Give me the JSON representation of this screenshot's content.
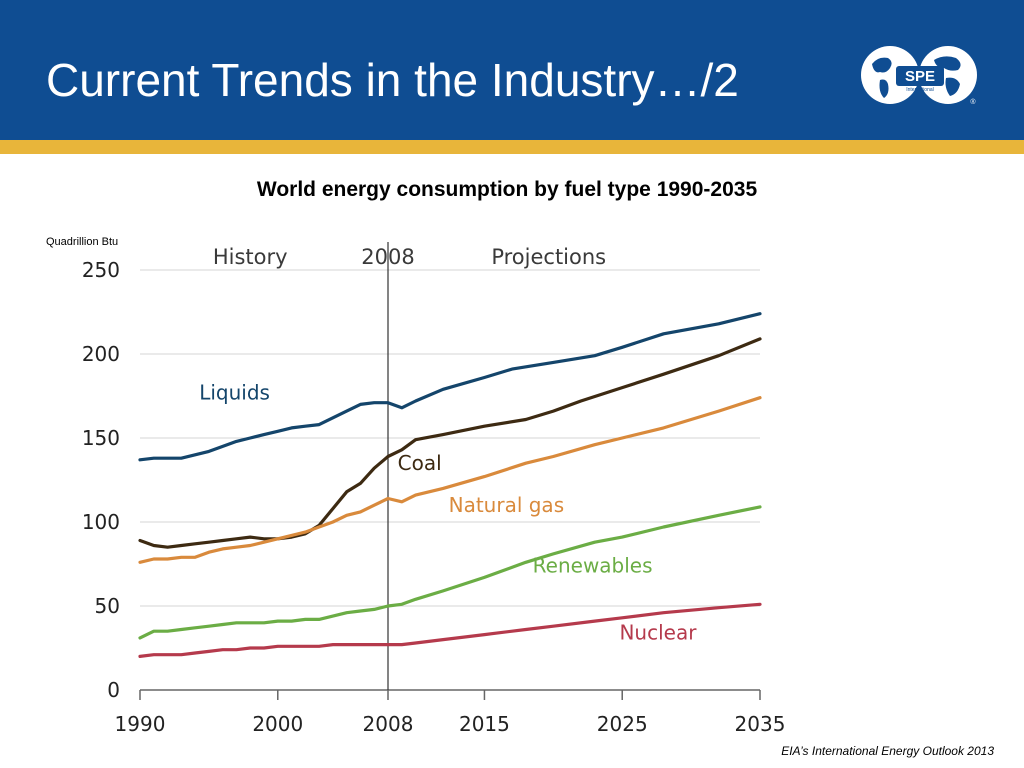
{
  "slide": {
    "title": "Current Trends in the Industry…/2",
    "source": "EIA’s International Energy Outlook 2013",
    "logo_text": "SPE",
    "logo_subtext": "International",
    "logo_mark": "®"
  },
  "colors": {
    "header": "#0f4d92",
    "gold": "#e8b53a",
    "liquids": "#14456b",
    "coal": "#3d2a12",
    "natural_gas": "#d98a3c",
    "renewables": "#6bad45",
    "nuclear": "#b53a4c"
  },
  "chart_data": {
    "type": "line",
    "title": "World energy consumption by fuel type 1990-2035",
    "ylabel": "Quadrillion Btu",
    "xlim": [
      1990,
      2035
    ],
    "ylim": [
      0,
      250
    ],
    "yticks": [
      0,
      50,
      100,
      150,
      200,
      250
    ],
    "xticks": [
      1990,
      2000,
      2008,
      2015,
      2025,
      2035
    ],
    "annotations": {
      "history": "History",
      "divider": "2008",
      "projections": "Projections"
    },
    "divider_year": 2008,
    "grid": true,
    "series": [
      {
        "name": "Liquids",
        "color": "#14456b",
        "points": [
          [
            1990,
            137
          ],
          [
            1991,
            138
          ],
          [
            1992,
            138
          ],
          [
            1993,
            138
          ],
          [
            1994,
            140
          ],
          [
            1995,
            142
          ],
          [
            1996,
            145
          ],
          [
            1997,
            148
          ],
          [
            1998,
            150
          ],
          [
            1999,
            152
          ],
          [
            2000,
            154
          ],
          [
            2001,
            156
          ],
          [
            2002,
            157
          ],
          [
            2003,
            158
          ],
          [
            2004,
            162
          ],
          [
            2005,
            166
          ],
          [
            2006,
            170
          ],
          [
            2007,
            171
          ],
          [
            2008,
            171
          ],
          [
            2009,
            168
          ],
          [
            2010,
            172
          ],
          [
            2012,
            179
          ],
          [
            2015,
            186
          ],
          [
            2017,
            191
          ],
          [
            2020,
            195
          ],
          [
            2023,
            199
          ],
          [
            2025,
            204
          ],
          [
            2028,
            212
          ],
          [
            2032,
            218
          ],
          [
            2035,
            224
          ]
        ]
      },
      {
        "name": "Coal",
        "color": "#3d2a12",
        "points": [
          [
            1990,
            89
          ],
          [
            1991,
            86
          ],
          [
            1992,
            85
          ],
          [
            1993,
            86
          ],
          [
            1994,
            87
          ],
          [
            1995,
            88
          ],
          [
            1996,
            89
          ],
          [
            1997,
            90
          ],
          [
            1998,
            91
          ],
          [
            1999,
            90
          ],
          [
            2000,
            90
          ],
          [
            2001,
            91
          ],
          [
            2002,
            93
          ],
          [
            2003,
            98
          ],
          [
            2004,
            108
          ],
          [
            2005,
            118
          ],
          [
            2006,
            123
          ],
          [
            2007,
            132
          ],
          [
            2008,
            139
          ],
          [
            2009,
            143
          ],
          [
            2010,
            149
          ],
          [
            2012,
            152
          ],
          [
            2015,
            157
          ],
          [
            2018,
            161
          ],
          [
            2020,
            166
          ],
          [
            2022,
            172
          ],
          [
            2025,
            180
          ],
          [
            2028,
            188
          ],
          [
            2032,
            199
          ],
          [
            2035,
            209
          ]
        ]
      },
      {
        "name": "Natural gas",
        "color": "#d98a3c",
        "points": [
          [
            1990,
            76
          ],
          [
            1991,
            78
          ],
          [
            1992,
            78
          ],
          [
            1993,
            79
          ],
          [
            1994,
            79
          ],
          [
            1995,
            82
          ],
          [
            1996,
            84
          ],
          [
            1997,
            85
          ],
          [
            1998,
            86
          ],
          [
            1999,
            88
          ],
          [
            2000,
            90
          ],
          [
            2001,
            92
          ],
          [
            2002,
            94
          ],
          [
            2003,
            97
          ],
          [
            2004,
            100
          ],
          [
            2005,
            104
          ],
          [
            2006,
            106
          ],
          [
            2007,
            110
          ],
          [
            2008,
            114
          ],
          [
            2009,
            112
          ],
          [
            2010,
            116
          ],
          [
            2012,
            120
          ],
          [
            2015,
            127
          ],
          [
            2018,
            135
          ],
          [
            2020,
            139
          ],
          [
            2023,
            146
          ],
          [
            2025,
            150
          ],
          [
            2028,
            156
          ],
          [
            2032,
            166
          ],
          [
            2035,
            174
          ]
        ]
      },
      {
        "name": "Renewables",
        "color": "#6bad45",
        "points": [
          [
            1990,
            31
          ],
          [
            1991,
            35
          ],
          [
            1992,
            35
          ],
          [
            1993,
            36
          ],
          [
            1994,
            37
          ],
          [
            1995,
            38
          ],
          [
            1996,
            39
          ],
          [
            1997,
            40
          ],
          [
            1998,
            40
          ],
          [
            1999,
            40
          ],
          [
            2000,
            41
          ],
          [
            2001,
            41
          ],
          [
            2002,
            42
          ],
          [
            2003,
            42
          ],
          [
            2004,
            44
          ],
          [
            2005,
            46
          ],
          [
            2006,
            47
          ],
          [
            2007,
            48
          ],
          [
            2008,
            50
          ],
          [
            2009,
            51
          ],
          [
            2010,
            54
          ],
          [
            2012,
            59
          ],
          [
            2015,
            67
          ],
          [
            2018,
            76
          ],
          [
            2020,
            81
          ],
          [
            2023,
            88
          ],
          [
            2025,
            91
          ],
          [
            2028,
            97
          ],
          [
            2032,
            104
          ],
          [
            2035,
            109
          ]
        ]
      },
      {
        "name": "Nuclear",
        "color": "#b53a4c",
        "points": [
          [
            1990,
            20
          ],
          [
            1991,
            21
          ],
          [
            1992,
            21
          ],
          [
            1993,
            21
          ],
          [
            1994,
            22
          ],
          [
            1995,
            23
          ],
          [
            1996,
            24
          ],
          [
            1997,
            24
          ],
          [
            1998,
            25
          ],
          [
            1999,
            25
          ],
          [
            2000,
            26
          ],
          [
            2001,
            26
          ],
          [
            2002,
            26
          ],
          [
            2003,
            26
          ],
          [
            2004,
            27
          ],
          [
            2005,
            27
          ],
          [
            2006,
            27
          ],
          [
            2007,
            27
          ],
          [
            2008,
            27
          ],
          [
            2009,
            27
          ],
          [
            2010,
            28
          ],
          [
            2012,
            30
          ],
          [
            2015,
            33
          ],
          [
            2018,
            36
          ],
          [
            2020,
            38
          ],
          [
            2023,
            41
          ],
          [
            2025,
            43
          ],
          [
            2028,
            46
          ],
          [
            2032,
            49
          ],
          [
            2035,
            51
          ]
        ]
      }
    ]
  }
}
